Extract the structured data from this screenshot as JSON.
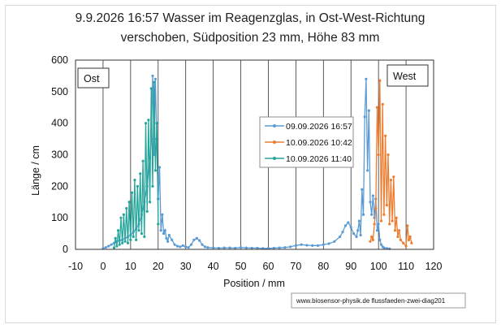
{
  "chart_data": {
    "type": "line",
    "title": "9.9.2026 16:57 Wasser im Reagenzglas, in Ost-West-Richtung",
    "subtitle": "verschoben, Südposition 23 mm, Höhe 83 mm",
    "xlabel": "Position / mm",
    "ylabel": "Länge / cm",
    "xlim": [
      -10,
      120
    ],
    "ylim": [
      0,
      600
    ],
    "xticks": [
      "-10",
      "0",
      "10",
      "20",
      "30",
      "40",
      "50",
      "60",
      "70",
      "80",
      "90",
      "100",
      "110",
      "120"
    ],
    "yticks": [
      "0",
      "100",
      "200",
      "300",
      "400",
      "500",
      "600"
    ],
    "grid": "vertical",
    "legend_position": "center",
    "annotations": {
      "east": "Ost",
      "west": "West"
    },
    "credit": "www.biosensor-physik.de  flussfaeden-zwei-diag201",
    "series": [
      {
        "name": "09.09.2026 16:57",
        "color": "#5b9bd5",
        "x": [
          0,
          1,
          2,
          3,
          4,
          5,
          6,
          7,
          8,
          9,
          10,
          11,
          12,
          13,
          14,
          15,
          16,
          17,
          17.5,
          18,
          18.5,
          19,
          19.5,
          20,
          20.5,
          21,
          21.5,
          22,
          22.5,
          23,
          23.5,
          24,
          25,
          26,
          27,
          28,
          29,
          30,
          31,
          32,
          33,
          34,
          35,
          36,
          37,
          38,
          40,
          42,
          44,
          46,
          48,
          50,
          52,
          54,
          56,
          58,
          60,
          62,
          64,
          66,
          68,
          70,
          72,
          74,
          76,
          78,
          80,
          82,
          84,
          86,
          87,
          88,
          89,
          90,
          91,
          92,
          92.5,
          93,
          93.5,
          94,
          94.5,
          95,
          95.5,
          96,
          96.5,
          97,
          97.5,
          98,
          98.5,
          99,
          99.5,
          100,
          100.5,
          101,
          101.5,
          102,
          103,
          104
        ],
        "y": [
          3,
          6,
          10,
          15,
          20,
          25,
          28,
          30,
          35,
          40,
          45,
          55,
          65,
          80,
          110,
          150,
          200,
          290,
          350,
          550,
          300,
          540,
          350,
          160,
          260,
          60,
          110,
          50,
          60,
          35,
          25,
          45,
          30,
          15,
          10,
          8,
          12,
          8,
          6,
          15,
          30,
          35,
          28,
          15,
          8,
          6,
          5,
          4,
          5,
          5,
          4,
          6,
          5,
          4,
          4,
          3,
          3,
          4,
          5,
          6,
          8,
          12,
          15,
          13,
          12,
          12,
          15,
          18,
          25,
          40,
          55,
          75,
          85,
          70,
          50,
          40,
          60,
          90,
          45,
          190,
          110,
          420,
          540,
          250,
          440,
          150,
          110,
          170,
          100,
          160,
          60,
          80,
          30,
          15,
          8,
          5,
          3,
          2
        ]
      },
      {
        "name": "10.09.2026 10:42",
        "color": "#ed7d31",
        "x": [
          97,
          97.5,
          98,
          98.5,
          99,
          99.5,
          100,
          100.5,
          101,
          101.5,
          102,
          102.5,
          103,
          103.5,
          104,
          104.5,
          105,
          105.5,
          106,
          106.5,
          107,
          107.5,
          108,
          109,
          110,
          110.5,
          111,
          111.5,
          112
        ],
        "y": [
          25,
          40,
          30,
          80,
          130,
          450,
          300,
          535,
          90,
          460,
          110,
          360,
          140,
          300,
          80,
          220,
          90,
          230,
          60,
          100,
          40,
          60,
          30,
          20,
          10,
          75,
          30,
          40,
          20
        ]
      },
      {
        "name": "10.09.2026 11:40",
        "color": "#26a69a",
        "x": [
          4,
          4.5,
          5,
          5.5,
          6,
          6.5,
          7,
          7.5,
          8,
          8.5,
          9,
          9.5,
          10,
          10.5,
          11,
          11.5,
          12,
          12.5,
          13,
          13.5,
          14,
          14.5,
          15,
          15.5,
          16,
          16.5,
          17,
          17.5,
          18,
          18.5,
          19,
          19.5,
          20
        ],
        "y": [
          5,
          35,
          10,
          60,
          15,
          100,
          20,
          110,
          25,
          130,
          20,
          150,
          30,
          180,
          40,
          220,
          30,
          200,
          60,
          240,
          50,
          280,
          40,
          400,
          120,
          410,
          150,
          510,
          200,
          530,
          250,
          400,
          80
        ]
      }
    ]
  }
}
